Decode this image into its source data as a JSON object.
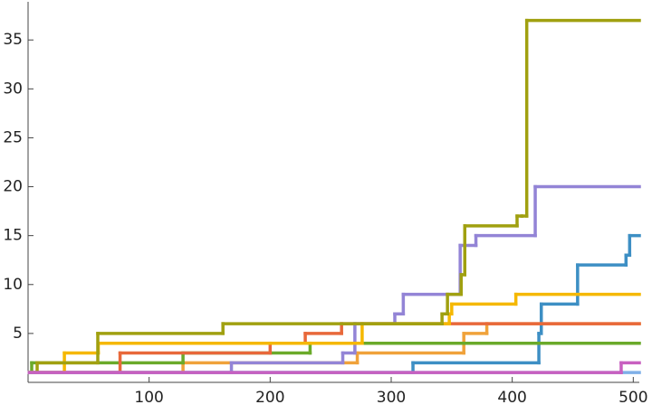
{
  "chart_data": {
    "type": "step",
    "xlim": [
      0,
      505
    ],
    "ylim": [
      0,
      38.9
    ],
    "xticks": [
      100,
      200,
      300,
      400,
      500
    ],
    "yticks": [
      5,
      10,
      15,
      20,
      25,
      30,
      35
    ],
    "series": [
      {
        "color": "#3d8fc4",
        "x": [
          1,
          318,
          422,
          424,
          454,
          494,
          497
        ],
        "values": [
          1,
          2,
          5,
          8,
          12,
          13,
          15
        ]
      },
      {
        "color": "#f0a23a",
        "x": [
          1,
          128,
          272,
          360,
          379
        ],
        "values": [
          1,
          2,
          3,
          5,
          6
        ]
      },
      {
        "color": "#6aaa2a",
        "x": [
          1,
          3,
          128,
          233
        ],
        "values": [
          1,
          2,
          3,
          4
        ]
      },
      {
        "color": "#e8683a",
        "x": [
          1,
          76,
          200,
          229,
          259
        ],
        "values": [
          1,
          3,
          4,
          5,
          6
        ]
      },
      {
        "color": "#9384d6",
        "x": [
          1,
          168,
          260,
          270,
          303,
          310,
          357,
          370,
          419
        ],
        "values": [
          1,
          2,
          3,
          6,
          7,
          9,
          14,
          15,
          20
        ]
      },
      {
        "color": "#f5b800",
        "x": [
          1,
          30,
          58,
          276,
          348,
          350,
          403
        ],
        "values": [
          1,
          3,
          4,
          6,
          7,
          8,
          9
        ]
      },
      {
        "color": "#a0a010",
        "x": [
          1,
          7.5,
          57.6,
          161,
          342,
          346.5,
          357.8,
          360.8,
          404,
          408,
          412
        ],
        "values": [
          1,
          2,
          5,
          6,
          7,
          9,
          11,
          16,
          17,
          17,
          37
        ]
      },
      {
        "color": "#7fb0e8",
        "x": [
          1
        ],
        "values": [
          1
        ]
      },
      {
        "color": "#c860c0",
        "x": [
          1,
          490
        ],
        "values": [
          1,
          2
        ]
      }
    ]
  }
}
